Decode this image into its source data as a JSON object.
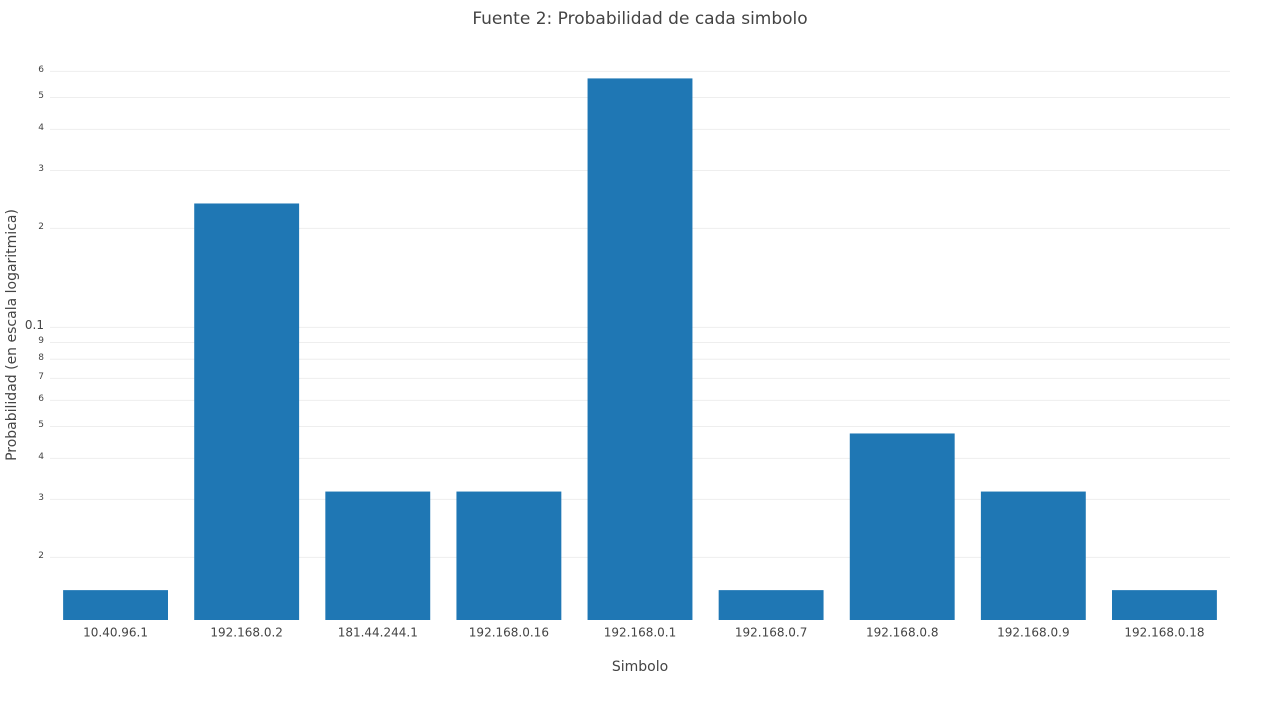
{
  "chart_data": {
    "type": "bar",
    "title": "Fuente 2: Probabilidad de cada simbolo",
    "x_label": "Simbolo",
    "y_label": "Probabilidad (en escala logaritmica)",
    "categories": [
      "10.40.96.1",
      "192.168.0.2",
      "181.44.244.1",
      "192.168.0.16",
      "192.168.0.1",
      "192.168.0.7",
      "192.168.0.8",
      "192.168.0.9",
      "192.168.0.18"
    ],
    "values": [
      0.0159,
      0.2381,
      0.0317,
      0.0317,
      0.5714,
      0.0159,
      0.0476,
      0.0317,
      0.0159
    ],
    "color": "#1f77b4",
    "log": true,
    "grid": true,
    "ylim": [
      0.0129,
      0.65
    ],
    "yticks": [
      {
        "value": 0.02,
        "label": "2"
      },
      {
        "value": 0.03,
        "label": "3"
      },
      {
        "value": 0.04,
        "label": "4"
      },
      {
        "value": 0.05,
        "label": "5"
      },
      {
        "value": 0.06,
        "label": "6"
      },
      {
        "value": 0.07,
        "label": "7"
      },
      {
        "value": 0.08,
        "label": "8"
      },
      {
        "value": 0.09,
        "label": "9"
      },
      0.1,
      {
        "value": 0.2,
        "label": "2"
      },
      {
        "value": 0.3,
        "label": "3"
      },
      {
        "value": 0.4,
        "label": "4"
      },
      {
        "value": 0.5,
        "label": "5"
      },
      {
        "value": 0.6,
        "label": "6"
      }
    ]
  }
}
